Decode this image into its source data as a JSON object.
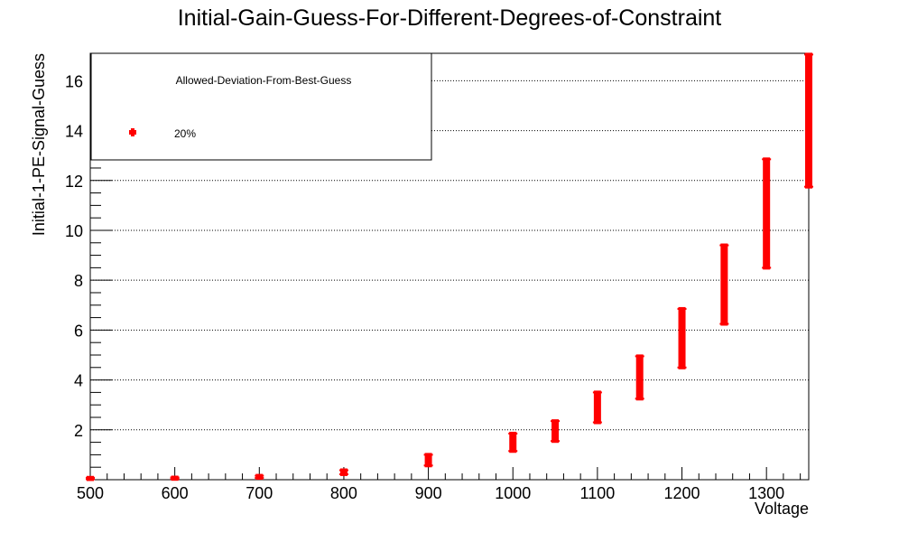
{
  "chart_data": {
    "type": "scatter",
    "title": "Initial-Gain-Guess-For-Different-Degrees-of-Constraint",
    "xlabel": "Voltage",
    "ylabel": "Initial-1-PE-Signal-Guess",
    "xlim": [
      500,
      1350
    ],
    "ylim": [
      0,
      17.1
    ],
    "x_ticks": [
      500,
      600,
      700,
      800,
      900,
      1000,
      1100,
      1200,
      1300
    ],
    "y_ticks": [
      2,
      4,
      6,
      8,
      10,
      12,
      14,
      16
    ],
    "grid": "horizontal-dotted",
    "legend": {
      "title": "Allowed-Deviation-From-Best-Guess",
      "placement": "top-left",
      "entries": [
        "20%"
      ]
    },
    "series": [
      {
        "name": "20%",
        "color": "#ff0000",
        "points": [
          {
            "x": 500,
            "ymin": 0.02,
            "ymax": 0.08
          },
          {
            "x": 600,
            "ymin": 0.03,
            "ymax": 0.09
          },
          {
            "x": 700,
            "ymin": 0.07,
            "ymax": 0.16
          },
          {
            "x": 800,
            "ymin": 0.22,
            "ymax": 0.38
          },
          {
            "x": 900,
            "ymin": 0.57,
            "ymax": 1.0
          },
          {
            "x": 1000,
            "ymin": 1.15,
            "ymax": 1.85
          },
          {
            "x": 1050,
            "ymin": 1.55,
            "ymax": 2.35
          },
          {
            "x": 1100,
            "ymin": 2.3,
            "ymax": 3.5
          },
          {
            "x": 1150,
            "ymin": 3.25,
            "ymax": 4.95
          },
          {
            "x": 1200,
            "ymin": 4.5,
            "ymax": 6.85
          },
          {
            "x": 1250,
            "ymin": 6.25,
            "ymax": 9.4
          },
          {
            "x": 1300,
            "ymin": 8.5,
            "ymax": 12.85
          },
          {
            "x": 1350,
            "ymin": 11.75,
            "ymax": 17.05
          }
        ]
      }
    ]
  }
}
